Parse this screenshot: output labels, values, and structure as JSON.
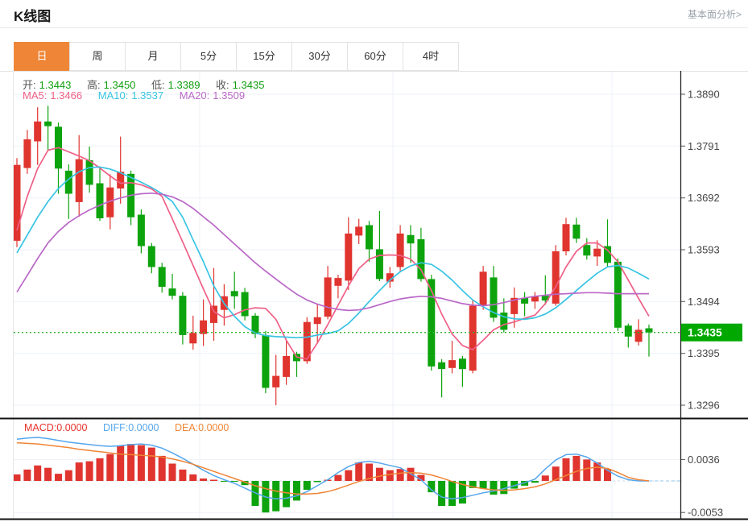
{
  "header": {
    "title": "K线图",
    "link_label": "基本面分析>"
  },
  "tabs": {
    "items": [
      "日",
      "周",
      "月",
      "5分",
      "15分",
      "30分",
      "60分",
      "4时"
    ],
    "selected": "日"
  },
  "ohlc": {
    "open_label": "开:",
    "open_value": "1.3443",
    "high_label": "高:",
    "high_value": "1.3450",
    "low_label": "低:",
    "low_value": "1.3389",
    "close_label": "收:",
    "close_value": "1.3435"
  },
  "ma_legend": {
    "ma5_label": "MA5:",
    "ma5_value": "1.3466",
    "ma10_label": "MA10:",
    "ma10_value": "1.3537",
    "ma20_label": "MA20:",
    "ma20_value": "1.3509"
  },
  "macd_legend": {
    "macd_label": "MACD:",
    "macd_value": "0.0000",
    "diff_label": "DIFF:",
    "diff_value": "0.0000",
    "dea_label": "DEA:",
    "dea_value": "0.0000"
  },
  "colors": {
    "up_red": "#e0342f",
    "down_green": "#0da30d",
    "value_green": "#0f9e0f",
    "ma5": "#ef5f86",
    "ma10": "#38c4e3",
    "ma20": "#ba68c8",
    "diff_blue": "#55a6ec",
    "dea_orange": "#f08536",
    "macd_red": "#e8332e",
    "price_tag_green": "#00a800",
    "tab_active_orange": "#ef8637"
  },
  "chart_data": {
    "type": "candlestick",
    "title": "K线图 日线 (daily K-line with MA5/MA10/MA20 overlays and MACD pane)",
    "legend_position": "top-left",
    "grid": true,
    "price_axis": {
      "ticks": [
        1.389,
        1.3791,
        1.3692,
        1.3593,
        1.3494,
        1.3395,
        1.3296
      ],
      "current_price": 1.3435,
      "current_price_label": "1.3435"
    },
    "last_candle_ohlc": {
      "open": 1.3443,
      "high": 1.345,
      "low": 1.3389,
      "close": 1.3435
    },
    "candles": [
      [
        1.361,
        1.3768,
        1.3598,
        1.3755
      ],
      [
        1.3749,
        1.3822,
        1.3738,
        1.3804
      ],
      [
        1.38,
        1.3865,
        1.3755,
        1.3838
      ],
      [
        1.3838,
        1.3868,
        1.3782,
        1.3829
      ],
      [
        1.3828,
        1.3836,
        1.37,
        1.3748
      ],
      [
        1.3744,
        1.3756,
        1.3652,
        1.37
      ],
      [
        1.3684,
        1.3812,
        1.3656,
        1.3766
      ],
      [
        1.3764,
        1.379,
        1.3702,
        1.3717
      ],
      [
        1.372,
        1.3751,
        1.3648,
        1.3653
      ],
      [
        1.3655,
        1.3737,
        1.3632,
        1.3712
      ],
      [
        1.371,
        1.3809,
        1.3681,
        1.3742
      ],
      [
        1.3738,
        1.3744,
        1.364,
        1.3655
      ],
      [
        1.366,
        1.367,
        1.3586,
        1.36
      ],
      [
        1.36,
        1.3606,
        1.3548,
        1.356
      ],
      [
        1.356,
        1.3568,
        1.3511,
        1.3522
      ],
      [
        1.3519,
        1.3547,
        1.3498,
        1.3505
      ],
      [
        1.3505,
        1.3512,
        1.3412,
        1.343
      ],
      [
        1.3414,
        1.3467,
        1.3402,
        1.3434
      ],
      [
        1.3432,
        1.3498,
        1.3409,
        1.3458
      ],
      [
        1.3453,
        1.3558,
        1.3419,
        1.3486
      ],
      [
        1.3478,
        1.3527,
        1.3448,
        1.3504
      ],
      [
        1.3514,
        1.3551,
        1.348,
        1.3504
      ],
      [
        1.3512,
        1.352,
        1.3458,
        1.3466
      ],
      [
        1.3467,
        1.3472,
        1.3424,
        1.3432
      ],
      [
        1.343,
        1.3438,
        1.3319,
        1.3329
      ],
      [
        1.333,
        1.3392,
        1.3296,
        1.3352
      ],
      [
        1.335,
        1.342,
        1.3335,
        1.339
      ],
      [
        1.3394,
        1.3398,
        1.335,
        1.338
      ],
      [
        1.338,
        1.3464,
        1.3375,
        1.3455
      ],
      [
        1.3451,
        1.349,
        1.3414,
        1.3464
      ],
      [
        1.3465,
        1.3562,
        1.346,
        1.354
      ],
      [
        1.3524,
        1.3545,
        1.35,
        1.3539
      ],
      [
        1.3534,
        1.3655,
        1.3516,
        1.3624
      ],
      [
        1.362,
        1.3652,
        1.3604,
        1.3637
      ],
      [
        1.364,
        1.3648,
        1.357,
        1.3594
      ],
      [
        1.3594,
        1.3667,
        1.3533,
        1.3537
      ],
      [
        1.3532,
        1.356,
        1.352,
        1.3548
      ],
      [
        1.356,
        1.364,
        1.355,
        1.3624
      ],
      [
        1.3621,
        1.364,
        1.3568,
        1.3605
      ],
      [
        1.3613,
        1.3635,
        1.3532,
        1.3537
      ],
      [
        1.3537,
        1.3545,
        1.3362,
        1.337
      ],
      [
        1.3378,
        1.3384,
        1.3311,
        1.3365
      ],
      [
        1.3367,
        1.3419,
        1.3357,
        1.3382
      ],
      [
        1.3385,
        1.339,
        1.3331,
        1.3365
      ],
      [
        1.3362,
        1.3496,
        1.3357,
        1.3486
      ],
      [
        1.3486,
        1.3562,
        1.3478,
        1.3551
      ],
      [
        1.354,
        1.3562,
        1.3455,
        1.3463
      ],
      [
        1.3473,
        1.35,
        1.3435,
        1.344
      ],
      [
        1.347,
        1.3521,
        1.3444,
        1.3501
      ],
      [
        1.3501,
        1.3512,
        1.3466,
        1.349
      ],
      [
        1.3494,
        1.3512,
        1.348,
        1.3504
      ],
      [
        1.3505,
        1.3544,
        1.3488,
        1.3496
      ],
      [
        1.349,
        1.3602,
        1.3486,
        1.359
      ],
      [
        1.359,
        1.3654,
        1.3582,
        1.3642
      ],
      [
        1.3641,
        1.3654,
        1.3606,
        1.3614
      ],
      [
        1.3602,
        1.3615,
        1.3574,
        1.3582
      ],
      [
        1.358,
        1.3611,
        1.3562,
        1.3595
      ],
      [
        1.36,
        1.3651,
        1.356,
        1.3568
      ],
      [
        1.357,
        1.3576,
        1.3438,
        1.3444
      ],
      [
        1.3448,
        1.3452,
        1.3406,
        1.3427
      ],
      [
        1.3417,
        1.346,
        1.341,
        1.344
      ],
      [
        1.3443,
        1.345,
        1.3389,
        1.3435
      ]
    ],
    "series": [
      {
        "name": "MA5",
        "last_value": 1.3466,
        "values": [
          1.363,
          1.3695,
          1.3748,
          1.3783,
          1.3788,
          1.378,
          1.3772,
          1.3763,
          1.3749,
          1.3734,
          1.372,
          1.3721,
          1.3717,
          1.3709,
          1.3695,
          1.3652,
          1.3608,
          1.3563,
          1.3518,
          1.3475,
          1.3463,
          1.3469,
          1.3478,
          1.3482,
          1.3481,
          1.346,
          1.342,
          1.3388,
          1.3384,
          1.3415,
          1.345,
          1.3487,
          1.3524,
          1.3557,
          1.3575,
          1.3582,
          1.3583,
          1.3582,
          1.3575,
          1.3555,
          1.3515,
          1.347,
          1.3432,
          1.341,
          1.3402,
          1.342,
          1.344,
          1.345,
          1.3455,
          1.3462,
          1.3468,
          1.349,
          1.3522,
          1.356,
          1.359,
          1.3606,
          1.3606,
          1.3592,
          1.357,
          1.3535,
          1.35,
          1.3466
        ]
      },
      {
        "name": "MA10",
        "last_value": 1.3537,
        "values": [
          1.3587,
          1.3621,
          1.3655,
          1.3685,
          1.371,
          1.3728,
          1.3742,
          1.375,
          1.3751,
          1.3747,
          1.374,
          1.3731,
          1.3722,
          1.3712,
          1.37,
          1.3685,
          1.3655,
          1.3612,
          1.357,
          1.3524,
          1.349,
          1.3466,
          1.3446,
          1.3434,
          1.3429,
          1.3427,
          1.3426,
          1.3425,
          1.3426,
          1.343,
          1.3433,
          1.3438,
          1.3452,
          1.3472,
          1.3494,
          1.3515,
          1.3535,
          1.3551,
          1.3562,
          1.3568,
          1.3565,
          1.3552,
          1.3535,
          1.3515,
          1.3497,
          1.3484,
          1.3473,
          1.3465,
          1.3461,
          1.346,
          1.3463,
          1.347,
          1.3482,
          1.3498,
          1.3515,
          1.3532,
          1.3548,
          1.356,
          1.3563,
          1.3558,
          1.3548,
          1.3537
        ]
      },
      {
        "name": "MA20",
        "last_value": 1.3509,
        "values": [
          1.3512,
          1.3544,
          1.3576,
          1.3606,
          1.3628,
          1.3645,
          1.3658,
          1.3669,
          1.3678,
          1.3686,
          1.3692,
          1.3697,
          1.37,
          1.3701,
          1.3699,
          1.3694,
          1.3685,
          1.3672,
          1.3656,
          1.364,
          1.3622,
          1.3604,
          1.3586,
          1.3568,
          1.3552,
          1.3537,
          1.3522,
          1.3508,
          1.3497,
          1.3489,
          1.3483,
          1.3479,
          1.3477,
          1.3478,
          1.3482,
          1.3488,
          1.3494,
          1.3499,
          1.3502,
          1.3504,
          1.3503,
          1.35,
          1.3495,
          1.349,
          1.3487,
          1.3486,
          1.3488,
          1.3492,
          1.3497,
          1.3501,
          1.3504,
          1.3506,
          1.3508,
          1.3509,
          1.351,
          1.3511,
          1.3511,
          1.351,
          1.3509,
          1.3509,
          1.3509,
          1.3509
        ]
      }
    ],
    "macd": {
      "axis_ticks": [
        0.0036,
        -0.0053
      ],
      "last_values": {
        "macd": 0.0,
        "diff": 0.0,
        "dea": 0.0
      },
      "histogram": [
        0.0011,
        0.0019,
        0.0026,
        0.0022,
        0.0012,
        0.0018,
        0.0031,
        0.0033,
        0.0038,
        0.0045,
        0.0059,
        0.0062,
        0.006,
        0.0056,
        0.0042,
        0.0029,
        0.0019,
        0.0011,
        0.0004,
        0.0002,
        -0.0001,
        -0.0001,
        -0.0007,
        -0.0042,
        -0.0053,
        -0.0051,
        -0.0044,
        -0.0033,
        -0.0015,
        -0.0002,
        0.0002,
        0.001,
        0.0018,
        0.0031,
        0.0029,
        0.0022,
        0.0018,
        0.002,
        0.0022,
        0.001,
        -0.0019,
        -0.0042,
        -0.0042,
        -0.0038,
        -0.0012,
        -0.0013,
        -0.0023,
        -0.0022,
        -0.0013,
        -0.0008,
        -0.0003,
        0.0009,
        0.0024,
        0.0038,
        0.0042,
        0.0036,
        0.0031,
        0.002,
        0.0,
        0.0,
        0.0,
        0.0
      ],
      "diff": [
        0.007,
        0.0072,
        0.0073,
        0.0071,
        0.0068,
        0.0065,
        0.0063,
        0.0061,
        0.0059,
        0.0058,
        0.0059,
        0.0061,
        0.0062,
        0.006,
        0.0055,
        0.0047,
        0.0038,
        0.0028,
        0.0018,
        0.0009,
        0.0002,
        -0.0004,
        -0.0012,
        -0.002,
        -0.0027,
        -0.003,
        -0.0029,
        -0.0025,
        -0.0018,
        -0.0008,
        0.0002,
        0.0014,
        0.0024,
        0.0031,
        0.0033,
        0.003,
        0.0026,
        0.0022,
        0.0012,
        0.0002,
        -0.0015,
        -0.0027,
        -0.003,
        -0.0028,
        -0.0024,
        -0.002,
        -0.0017,
        -0.0013,
        -0.0008,
        -0.0003,
        0.0003,
        0.002,
        0.0035,
        0.0044,
        0.0045,
        0.004,
        0.003,
        0.0018,
        0.0008,
        0.0002,
        0.0,
        0.0
      ],
      "dea": [
        0.0064,
        0.0063,
        0.0062,
        0.006,
        0.0058,
        0.0056,
        0.0053,
        0.0051,
        0.0049,
        0.0047,
        0.0045,
        0.0044,
        0.0043,
        0.0042,
        0.004,
        0.0037,
        0.0033,
        0.0028,
        0.0022,
        0.0016,
        0.001,
        0.0004,
        -0.0002,
        -0.0008,
        -0.0013,
        -0.0017,
        -0.002,
        -0.0022,
        -0.0022,
        -0.0021,
        -0.0018,
        -0.0013,
        -0.0007,
        -0.0001,
        0.0004,
        0.0008,
        0.0011,
        0.0013,
        0.0014,
        0.0013,
        0.001,
        0.0005,
        -0.0001,
        -0.0006,
        -0.001,
        -0.0013,
        -0.0015,
        -0.0016,
        -0.0015,
        -0.0013,
        -0.001,
        -0.0005,
        0.0002,
        0.0009,
        0.0016,
        0.0021,
        0.0023,
        0.0021,
        0.0014,
        0.0006,
        0.0002,
        0.0
      ]
    }
  }
}
